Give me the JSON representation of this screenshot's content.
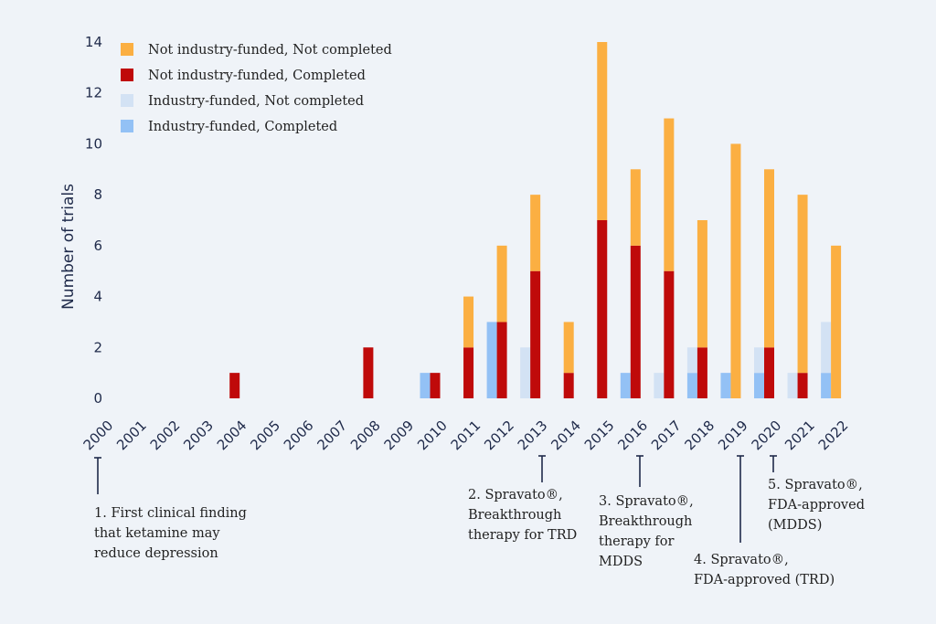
{
  "chart_data": {
    "type": "bar",
    "stacked": true,
    "title": "",
    "xlabel": "",
    "ylabel": "Number of trials",
    "ylim": [
      0,
      14
    ],
    "yticks": [
      0,
      2,
      4,
      6,
      8,
      10,
      12,
      14
    ],
    "grid": false,
    "legend_position": "top-left",
    "categories": [
      "2000",
      "2001",
      "2002",
      "2003",
      "2004",
      "2005",
      "2006",
      "2007",
      "2008",
      "2009",
      "2010",
      "2011",
      "2012",
      "2013",
      "2014",
      "2015",
      "2016",
      "2017",
      "2018",
      "2019",
      "2020",
      "2021",
      "2022"
    ],
    "industry_series": [
      {
        "name": "Industry-funded, Completed",
        "color": "#93c1f5",
        "values": [
          0,
          0,
          0,
          0,
          0,
          0,
          0,
          0,
          0,
          0,
          1,
          0,
          3,
          0,
          0,
          0,
          1,
          0,
          1,
          1,
          1,
          0,
          1
        ]
      },
      {
        "name": "Industry-funded, Not completed",
        "color": "#d3e2f4",
        "values": [
          0,
          0,
          0,
          0,
          0,
          0,
          0,
          0,
          0,
          0,
          0,
          0,
          0,
          2,
          0,
          0,
          0,
          1,
          1,
          0,
          1,
          1,
          2
        ]
      }
    ],
    "non_industry_series": [
      {
        "name": "Not industry-funded, Completed",
        "color": "#bf0a0a",
        "values": [
          0,
          0,
          0,
          0,
          1,
          0,
          0,
          0,
          2,
          0,
          1,
          2,
          3,
          5,
          1,
          7,
          6,
          5,
          2,
          0,
          2,
          1,
          0
        ]
      },
      {
        "name": "Not industry-funded, Not completed",
        "color": "#fbaf42",
        "values": [
          0,
          0,
          0,
          0,
          0,
          0,
          0,
          0,
          0,
          0,
          0,
          2,
          3,
          3,
          2,
          7,
          3,
          6,
          5,
          10,
          7,
          7,
          6
        ]
      }
    ],
    "legend": [
      {
        "label": "Not industry-funded, Not completed",
        "color": "#fbaf42"
      },
      {
        "label": "Not industry-funded, Completed",
        "color": "#bf0a0a"
      },
      {
        "label": "Industry-funded, Not completed",
        "color": "#d3e2f4"
      },
      {
        "label": "Industry-funded, Completed",
        "color": "#93c1f5"
      }
    ],
    "annotations": [
      {
        "year": "2000",
        "lines": [
          "1. First clinical finding",
          "that ketamine may",
          "reduce depression"
        ]
      },
      {
        "year": "2012",
        "lines": [
          "2. Spravato®,",
          "Breakthrough",
          "therapy for TRD"
        ]
      },
      {
        "year": "2015",
        "lines": [
          "3. Spravato®,",
          "Breakthrough",
          "therapy for",
          "MDDS"
        ]
      },
      {
        "year": "2018",
        "lines": [
          "4. Spravato®,",
          "FDA-approved (TRD)"
        ]
      },
      {
        "year": "2019",
        "lines": [
          "5. Spravato®,",
          "FDA-approved",
          "(MDDS)"
        ]
      }
    ]
  }
}
